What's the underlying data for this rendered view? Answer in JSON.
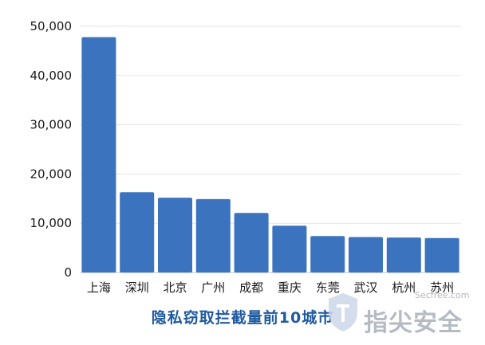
{
  "chart_data": {
    "type": "bar",
    "title": "隐私窃取拦截量前10城市",
    "categories": [
      "上海",
      "深圳",
      "北京",
      "广州",
      "成都",
      "重庆",
      "东莞",
      "武汉",
      "杭州",
      "苏州"
    ],
    "values": [
      47800,
      16300,
      15200,
      14900,
      12100,
      9500,
      7400,
      7200,
      7100,
      7000
    ],
    "ylim": [
      0,
      50000
    ],
    "yticks": [
      0,
      10000,
      20000,
      30000,
      40000,
      50000
    ],
    "ytick_labels": [
      "0",
      "10,000",
      "20,000",
      "30,000",
      "40,000",
      "50,000"
    ],
    "grid": true,
    "bar_color": "#3b73bf"
  },
  "watermark": {
    "small": "Secfree.com",
    "brand": "指尖安全"
  }
}
